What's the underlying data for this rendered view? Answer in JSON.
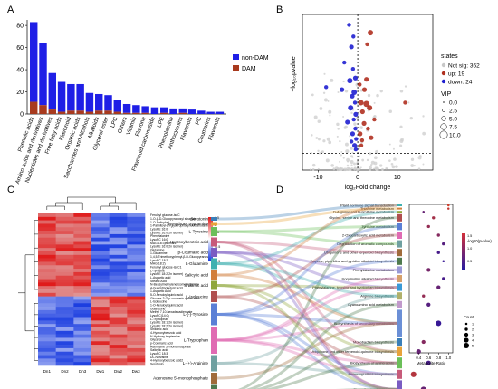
{
  "panels": {
    "a": {
      "label": "A"
    },
    "b": {
      "label": "B"
    },
    "c": {
      "label": "C"
    },
    "d": {
      "label": "D"
    }
  },
  "chart_data": [
    {
      "panel": "A",
      "type": "bar",
      "stacked": true,
      "categories": [
        "Phenolic acids",
        "Amino acids and derivatives",
        "Nucleotides and derivatives",
        "Free fatty acids",
        "Flavonoid",
        "Organic acids",
        "Saccharides and Alcohols",
        "Alkaloids",
        "Glycerol ester",
        "LPC",
        "Others",
        "Vitamin",
        "Flavone",
        "Flavonoid carbonoside",
        "LPE",
        "Phenolamine",
        "Anthocyanins",
        "Flavonols",
        "PC",
        "Coumarins",
        "Flavanols"
      ],
      "series": [
        {
          "name": "non-DAM",
          "color": "#1f1fe6",
          "values": [
            72,
            56,
            33,
            27,
            24,
            24,
            17,
            15,
            14,
            11,
            8,
            7,
            6,
            6,
            5,
            5,
            4,
            4,
            3,
            2,
            2
          ]
        },
        {
          "name": "DAM",
          "color": "#a83a1e",
          "values": [
            11,
            8,
            4,
            2,
            3,
            3,
            2,
            3,
            3,
            2,
            1,
            1,
            1,
            0,
            1,
            0,
            1,
            0,
            0,
            0,
            0
          ]
        }
      ],
      "yticks": [
        0,
        20,
        40,
        60,
        80
      ],
      "ylim": [
        0,
        85
      ],
      "legend": "right"
    },
    {
      "panel": "B",
      "type": "scatter",
      "xlabel": "log₂Fold change",
      "ylabel": "−log₁₀pvalue",
      "xticks": [
        -10,
        0,
        10
      ],
      "xlim": [
        -14,
        19
      ],
      "ylim": [
        0,
        12
      ],
      "threshold_y": 1.3,
      "threshold_x": 0,
      "legend_title": "states",
      "legend": [
        {
          "name": "Not sig: 362",
          "color": "#c8c8c8"
        },
        {
          "name": "up: 19",
          "color": "#b03020"
        },
        {
          "name": "down: 24",
          "color": "#1f1fd0"
        }
      ],
      "size_title": "VIP",
      "size_legend": [
        "0.0",
        "2.5",
        "5.0",
        "7.5",
        "10.0"
      ],
      "points": [
        {
          "x": -2.2,
          "y": 11.2,
          "s": "down",
          "v": 3
        },
        {
          "x": 3.2,
          "y": 10.6,
          "s": "up",
          "v": 5
        },
        {
          "x": -1.1,
          "y": 10.3,
          "s": "down",
          "v": 3
        },
        {
          "x": 2.4,
          "y": 9.7,
          "s": "up",
          "v": 3
        },
        {
          "x": -1.6,
          "y": 9.5,
          "s": "down",
          "v": 4
        },
        {
          "x": -3.4,
          "y": 8.3,
          "s": "down",
          "v": 3
        },
        {
          "x": -1.2,
          "y": 7.8,
          "s": "down",
          "v": 3
        },
        {
          "x": -0.6,
          "y": 7.1,
          "s": "down",
          "v": 4
        },
        {
          "x": -2.0,
          "y": 6.9,
          "s": "down",
          "v": 5
        },
        {
          "x": -4.0,
          "y": 6.2,
          "s": "down",
          "v": 4
        },
        {
          "x": -0.9,
          "y": 6.0,
          "s": "down",
          "v": 5
        },
        {
          "x": -1.4,
          "y": 5.7,
          "s": "down",
          "v": 4
        },
        {
          "x": -0.7,
          "y": 5.2,
          "s": "down",
          "v": 3
        },
        {
          "x": -1.8,
          "y": 4.8,
          "s": "down",
          "v": 5
        },
        {
          "x": -0.5,
          "y": 4.3,
          "s": "down",
          "v": 4
        },
        {
          "x": -1.0,
          "y": 3.9,
          "s": "down",
          "v": 3
        },
        {
          "x": -2.6,
          "y": 3.7,
          "s": "down",
          "v": 4
        },
        {
          "x": -0.6,
          "y": 3.2,
          "s": "down",
          "v": 3
        },
        {
          "x": -1.3,
          "y": 2.8,
          "s": "down",
          "v": 4
        },
        {
          "x": -0.4,
          "y": 2.4,
          "s": "down",
          "v": 3
        },
        {
          "x": -1.6,
          "y": 2.2,
          "s": "down",
          "v": 3
        },
        {
          "x": -0.8,
          "y": 1.9,
          "s": "down",
          "v": 4
        },
        {
          "x": -0.5,
          "y": 1.6,
          "s": "down",
          "v": 3
        },
        {
          "x": -8.0,
          "y": 6.4,
          "s": "down",
          "v": 3
        },
        {
          "x": 3.0,
          "y": 4.8,
          "s": "up",
          "v": 5
        },
        {
          "x": 2.2,
          "y": 5.1,
          "s": "up",
          "v": 6
        },
        {
          "x": 1.2,
          "y": 4.5,
          "s": "up",
          "v": 4
        },
        {
          "x": 4.2,
          "y": 3.9,
          "s": "up",
          "v": 3
        },
        {
          "x": 0.8,
          "y": 5.2,
          "s": "up",
          "v": 5
        },
        {
          "x": 1.6,
          "y": 3.6,
          "s": "up",
          "v": 4
        },
        {
          "x": 2.6,
          "y": 3.2,
          "s": "up",
          "v": 3
        },
        {
          "x": 0.6,
          "y": 2.8,
          "s": "up",
          "v": 4
        },
        {
          "x": 1.1,
          "y": 2.3,
          "s": "up",
          "v": 3
        },
        {
          "x": 3.4,
          "y": 2.5,
          "s": "up",
          "v": 4
        },
        {
          "x": 0.9,
          "y": 1.9,
          "s": "up",
          "v": 3
        },
        {
          "x": 12.0,
          "y": 5.2,
          "s": "up",
          "v": 3
        },
        {
          "x": 1.7,
          "y": 6.2,
          "s": "up",
          "v": 4
        },
        {
          "x": 2.2,
          "y": 7.0,
          "s": "up",
          "v": 4
        },
        {
          "x": 0.5,
          "y": 6.6,
          "s": "up",
          "v": 3
        }
      ]
    },
    {
      "panel": "C",
      "type": "heatmap",
      "columns": [
        "Dn1",
        "Dn2",
        "Dn3",
        "Dw1",
        "Dw2",
        "Dw3"
      ],
      "rows": [
        "Feruloyl glucose-isoC",
        "1-O-β-D-Glucopyranosyl sinapate",
        "1-O-Salicyloyl",
        "1-Palmitoyl-sn-glycerophosphoethanolamine",
        "LysoPE 16:0",
        "LysoPE 16:0(2n isomer)",
        "Phenylalanine",
        "LysoPC 16:0",
        "MAG(18:3)isomer1",
        "LysoPE 16:0(2n isomer)",
        "Glutamine",
        "1-Glutamine",
        "1,4,5-Trimethoxyphenyl-β-D-Glucopyranoside",
        "LysoPC 18:2",
        "MAG(18:2)",
        "Feruloyl glucose-isoC1",
        "L-Tyrosine",
        "LysoPE 18:2(2n isomer)",
        "L-Aspartic acid",
        "Stearic Acid",
        "N-Benzylmethylene isomethylamine",
        "4-Guanidinobutyric acid",
        "1-Aspartic Acid",
        "5-O-Feruloyl quinic acid",
        "Glucose-3-O-p-coumaric quinic acid",
        "L-Isoleucine",
        "1-O-Feruloyl quinic acid",
        "Guanosine",
        "Methyl 7,10-hexadecadienoate",
        "LysoPC(14:0)",
        "L-Tryptophan",
        "LysoPE 18:1(2n isomer)",
        "LysoPE 18:2(2n isomer)",
        "Shikimic acid",
        "4-Hydroxybenzoic acid",
        "N-Hydroxy tryptamine",
        "Glycerol",
        "p-Coumaric acid",
        "Adenosine 5'-monophosphate",
        "Salicylic acid",
        "LysoPC 18:3",
        "DL-Norvaline",
        "4-Hydroxybenzoic acid2",
        "Serotonin"
      ],
      "color_scale": [
        "#1c3ee0",
        "#ffffff",
        "#e01818"
      ],
      "scale_ticks": [
        "1.5",
        "1",
        "0.5",
        "0",
        "-0.5",
        "-1",
        "-1.5"
      ],
      "top_rows": 24,
      "bottom_rows": 20
    },
    {
      "panel": "D",
      "type": "sankey",
      "metabolites": [
        "Serotonin",
        "N-Hydroxy tryptamine",
        "L-Tyrosine",
        "4-Hydroxybenzoic acid",
        "p-Coumaric acid",
        "L-Glutamine",
        "Salicylic acid",
        "Shikimic acid",
        "L-Isoleucine",
        "L-(-)-Tyrosine",
        "L-Tryptophan",
        "L-(+)-Arginine",
        "Adenosine 5'-monophosphate",
        "L-AsparticAcid"
      ],
      "pathways": [
        "Plant hormone signal transduction",
        "Thiamine metabolism",
        "D-Arginine and D-ornithine metabolism",
        "Glycine, serine and threonine metabolism",
        "Tyrosine metabolism",
        "2-Oxocarboxylic acid metabolism",
        "Degradation of aromatic compounds",
        "Ubiquinone and other terpenoid biosynthesis",
        "Tropane, piperidine and pyridine alkaloid biosynthesis",
        "Phenylalanine metabolism",
        "Isoquinoline alkaloid biosynthesis",
        "Phenylalanine, tyrosine and tryptophan biosynthesis",
        "Arginine biosynthesis",
        "Cyanoamino acid metabolism",
        "Biosynthesis of secondary metabolites",
        "Monobactam biosynthesis",
        "Ubiquinone and other terpenoid-quinone biosynthesis",
        "Biosynthesis of amino acids",
        "Aminoacyl-tRNA biosynthesis",
        "Biosynthesis of antibiotics"
      ],
      "bubble_xlabel": "Metabolite Ratio",
      "bubble_xticks": [
        "0.4",
        "0.6",
        "0.8",
        "1.0"
      ],
      "bubble_color_title": "-log10(pvalue)",
      "bubble_color_ticks": [
        "1.5",
        "1.0",
        "0.5"
      ],
      "bubble_size_title": "Count",
      "bubble_size_legend": [
        "1",
        "2",
        "3",
        "4",
        "5"
      ],
      "bubbles": [
        {
          "ratio": 1.0,
          "count": 1,
          "p": 1.6
        },
        {
          "ratio": 1.0,
          "count": 1,
          "p": 1.5
        },
        {
          "ratio": 0.5,
          "count": 1,
          "p": 0.9
        },
        {
          "ratio": 0.7,
          "count": 2,
          "p": 1.3
        },
        {
          "ratio": 0.6,
          "count": 2,
          "p": 1.2
        },
        {
          "ratio": 0.8,
          "count": 2,
          "p": 1.1
        },
        {
          "ratio": 0.9,
          "count": 2,
          "p": 0.8
        },
        {
          "ratio": 0.8,
          "count": 2,
          "p": 0.7
        },
        {
          "ratio": 0.9,
          "count": 1,
          "p": 0.6
        },
        {
          "ratio": 0.6,
          "count": 3,
          "p": 1.0
        },
        {
          "ratio": 0.9,
          "count": 2,
          "p": 0.7
        },
        {
          "ratio": 0.8,
          "count": 3,
          "p": 0.9
        },
        {
          "ratio": 0.5,
          "count": 2,
          "p": 1.2
        },
        {
          "ratio": 0.6,
          "count": 3,
          "p": 0.8
        },
        {
          "ratio": 0.8,
          "count": 5,
          "p": 0.6
        },
        {
          "ratio": 0.5,
          "count": 3,
          "p": 1.1
        },
        {
          "ratio": 0.4,
          "count": 4,
          "p": 0.9
        },
        {
          "ratio": 0.6,
          "count": 4,
          "p": 0.7
        },
        {
          "ratio": 0.3,
          "count": 5,
          "p": 1.4
        },
        {
          "ratio": 0.5,
          "count": 5,
          "p": 0.9
        }
      ]
    }
  ]
}
